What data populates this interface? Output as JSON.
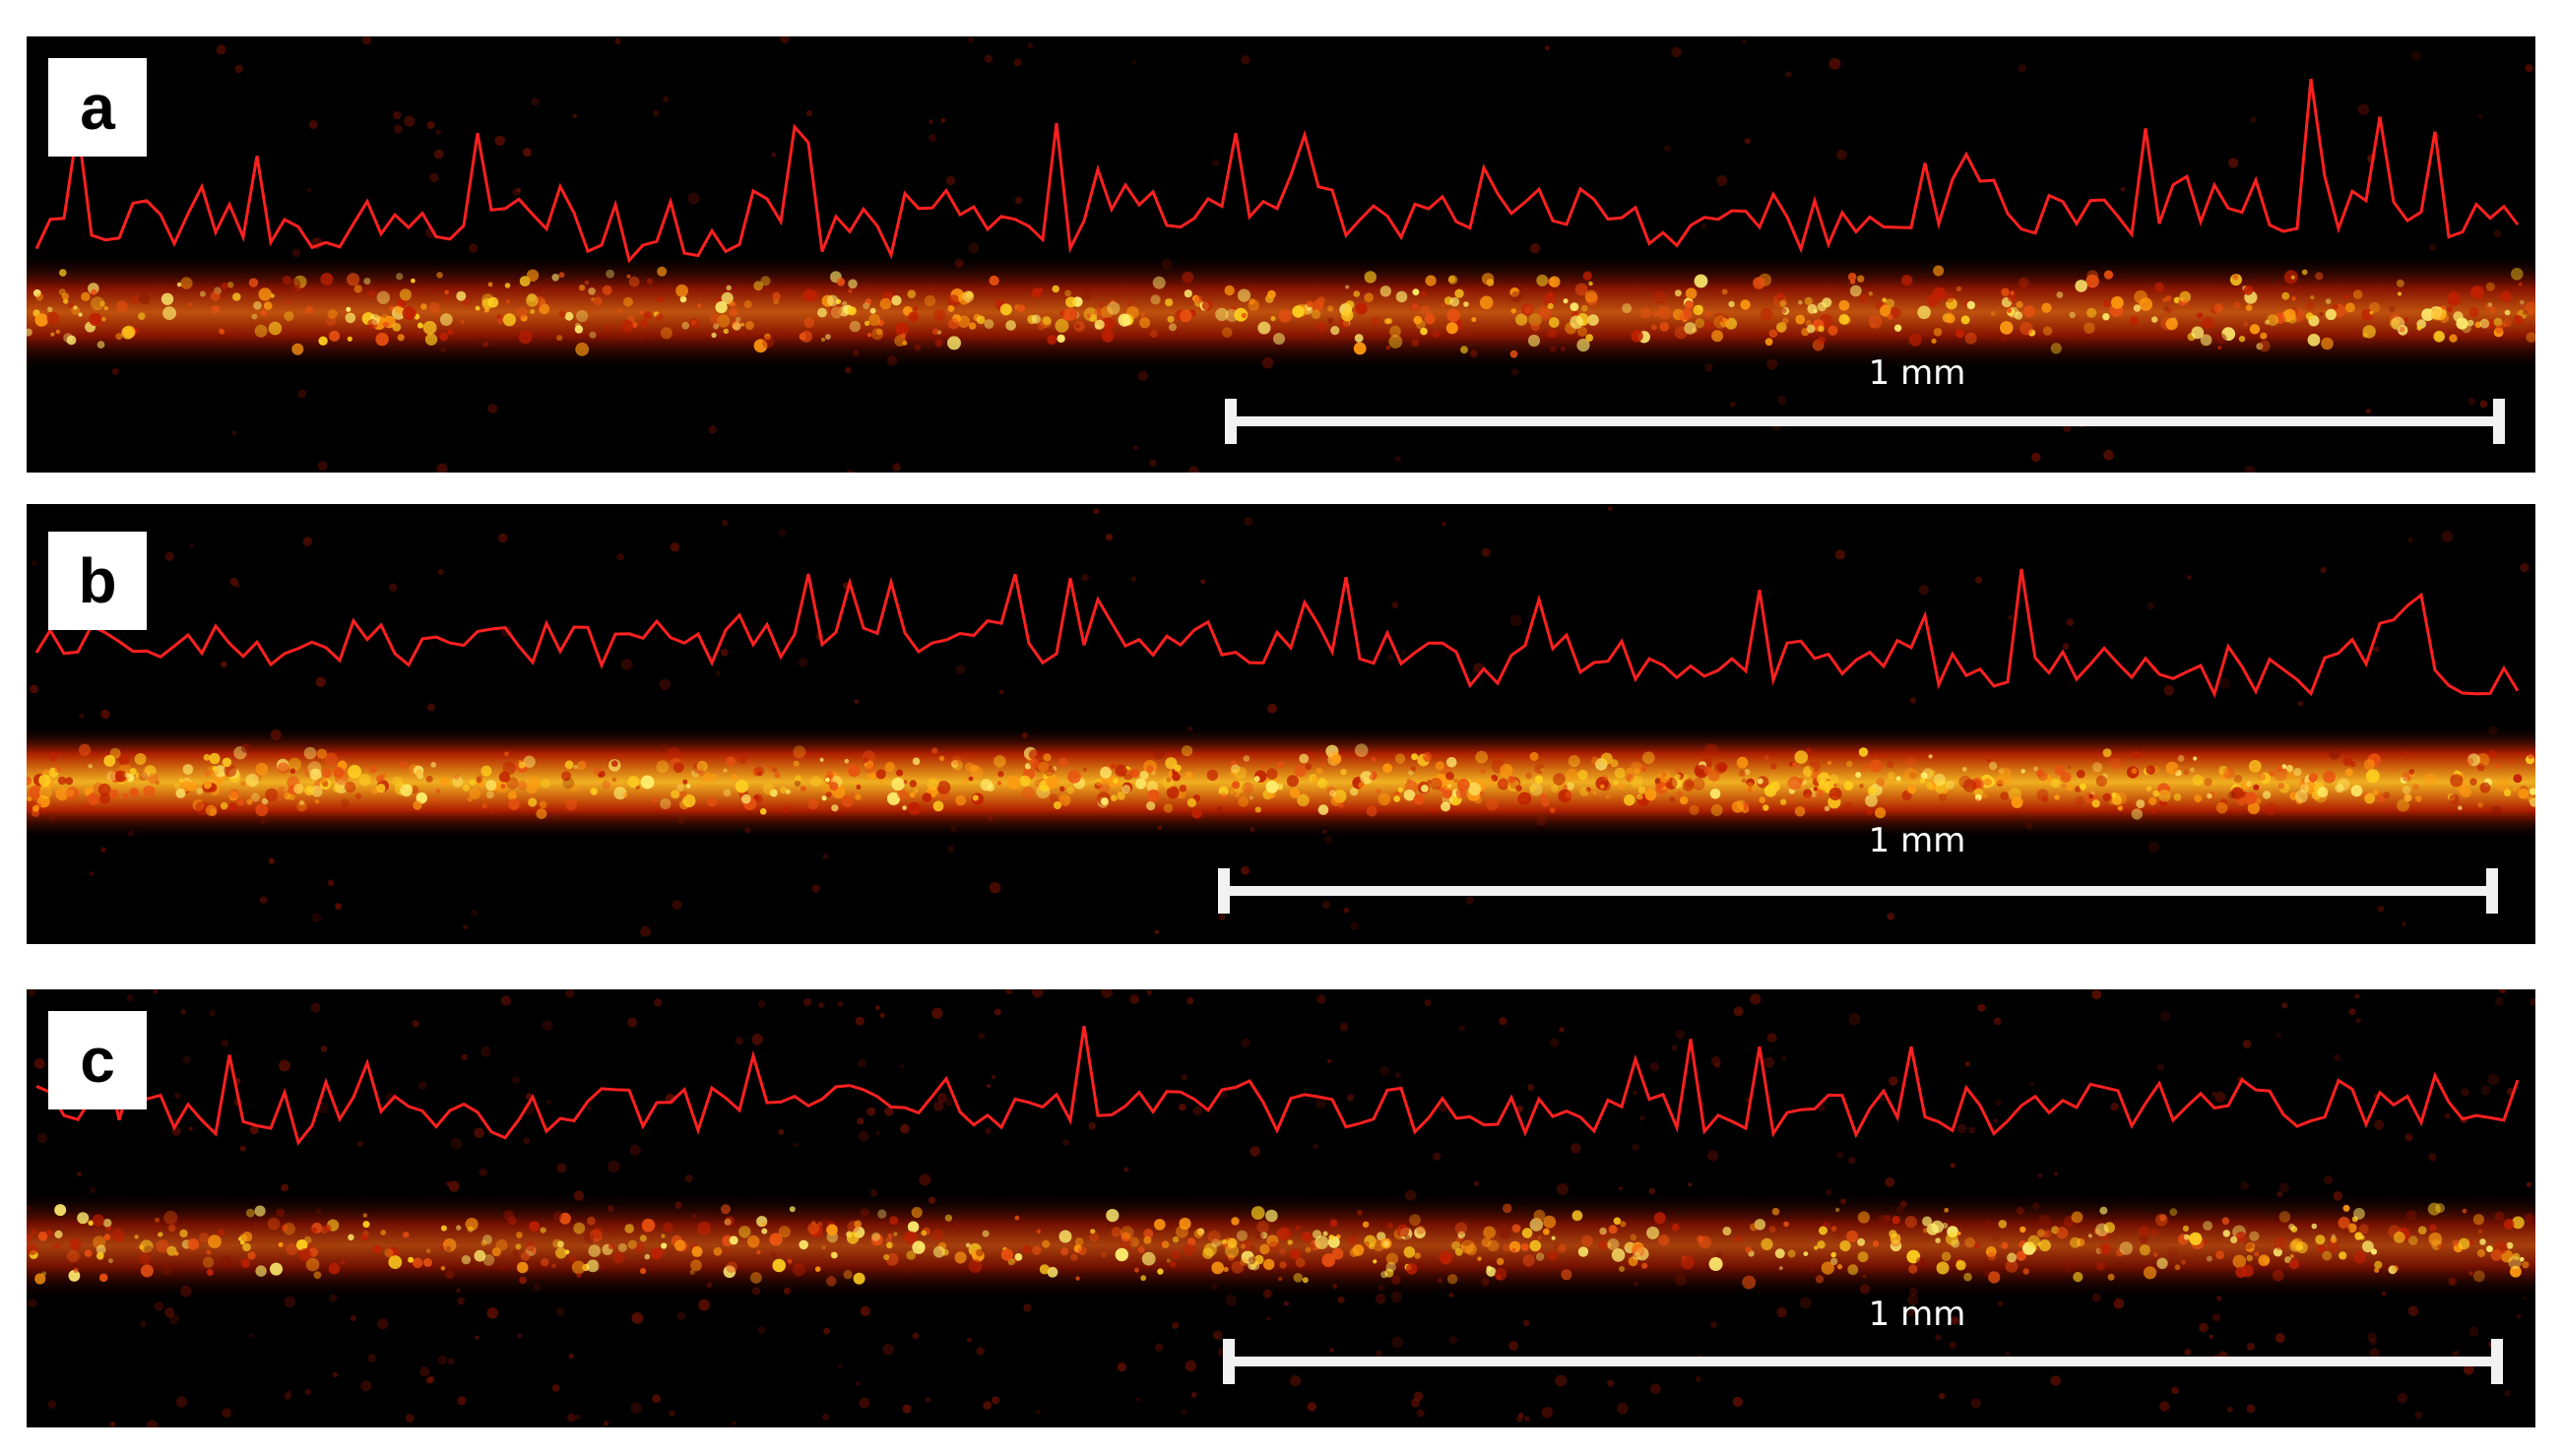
{
  "panels": [
    {
      "label": "a",
      "scale": "1 mm"
    },
    {
      "label": "b",
      "scale": "1 mm"
    },
    {
      "label": "c",
      "scale": "1 mm"
    }
  ],
  "colors": {
    "trace": "#ff2020",
    "band_core": "#f0c020",
    "band_edge": "#b01800",
    "background": "#000000",
    "scalebar": "#f2f2f2"
  }
}
